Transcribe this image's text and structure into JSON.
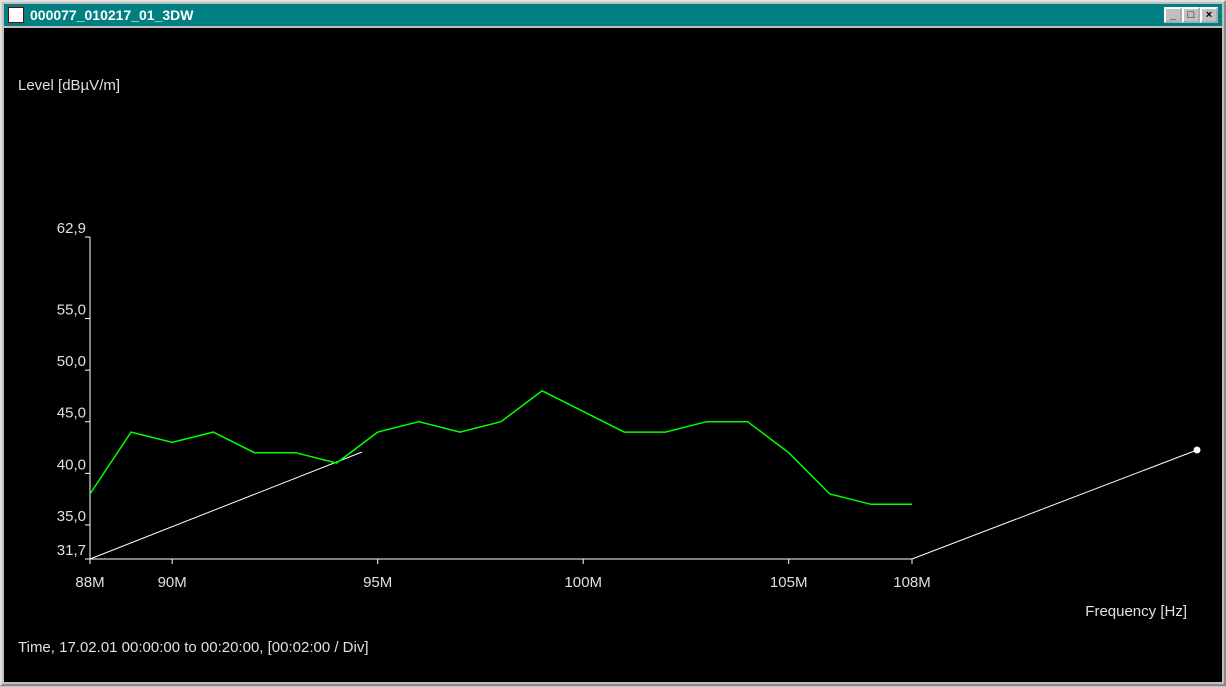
{
  "window_title": "000077_010217_01_3DW",
  "chart_data": {
    "type": "line",
    "y_label": "Level [dBµV/m]",
    "x_label": "Frequency [Hz]",
    "footer": "Time, 17.02.01  00:00:00 to 00:20:00, [00:02:00 / Div]",
    "x": [
      88000000,
      89000000,
      90000000,
      91000000,
      92000000,
      93000000,
      94000000,
      95000000,
      96000000,
      97000000,
      98000000,
      99000000,
      100000000,
      101000000,
      102000000,
      103000000,
      104000000,
      105000000,
      106000000,
      107000000,
      108000000
    ],
    "values": [
      38,
      44,
      43,
      44,
      42,
      42,
      41,
      44,
      45,
      44,
      45,
      48,
      46,
      44,
      44,
      45,
      45,
      42,
      38,
      37,
      37
    ],
    "color": "#00ff00",
    "xlim": [
      88000000,
      108000000
    ],
    "xticks": [
      {
        "value": 88000000,
        "label": "88M"
      },
      {
        "value": 90000000,
        "label": "90M"
      },
      {
        "value": 95000000,
        "label": "95M"
      },
      {
        "value": 100000000,
        "label": "100M"
      },
      {
        "value": 105000000,
        "label": "105M"
      },
      {
        "value": 108000000,
        "label": "108M"
      }
    ],
    "ylim": [
      31.7,
      62.9
    ],
    "yticks": [
      {
        "value": 31.7,
        "label": "31,7"
      },
      {
        "value": 35,
        "label": "35,0"
      },
      {
        "value": 40,
        "label": "40,0"
      },
      {
        "value": 45,
        "label": "45,0"
      },
      {
        "value": 50,
        "label": "50,0"
      },
      {
        "value": 55,
        "label": "55,0"
      },
      {
        "value": 62.9,
        "label": "62,9"
      }
    ]
  }
}
